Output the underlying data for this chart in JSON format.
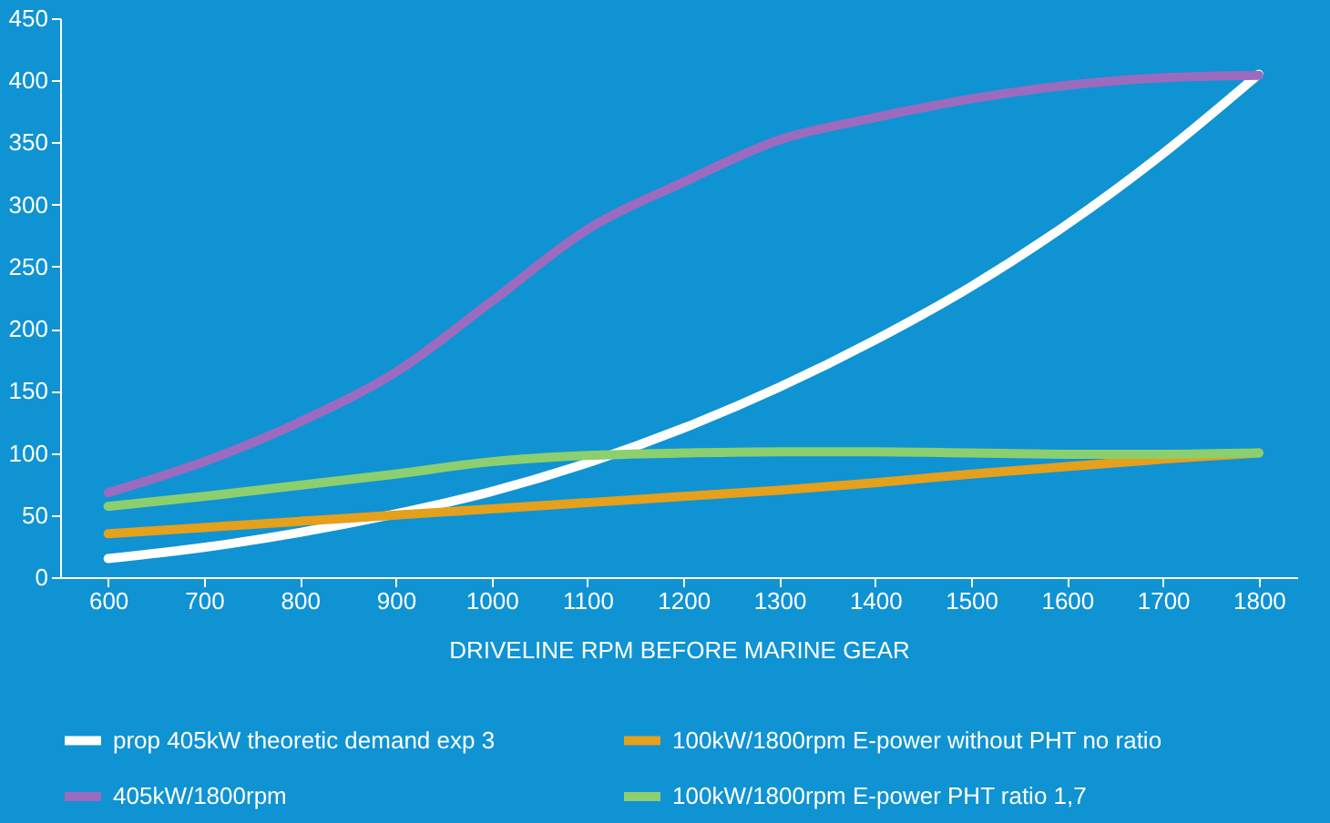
{
  "chart_data": {
    "type": "line",
    "xlabel": "DRIVELINE RPM BEFORE MARINE GEAR",
    "xlim": [
      550,
      1840
    ],
    "ylim": [
      0,
      450
    ],
    "xticks": [
      600,
      700,
      800,
      900,
      1000,
      1100,
      1200,
      1300,
      1400,
      1500,
      1600,
      1700,
      1800
    ],
    "yticks": [
      0,
      50,
      100,
      150,
      200,
      250,
      300,
      350,
      400,
      450
    ],
    "x": [
      600,
      700,
      800,
      900,
      1000,
      1100,
      1200,
      1300,
      1400,
      1500,
      1600,
      1700,
      1800
    ],
    "legend": "bottom",
    "series": [
      {
        "name": "prop 405kW theoretic demand exp 3",
        "color": "#ffffff",
        "values": [
          15,
          24,
          36,
          51,
          69,
          92,
          120,
          153,
          191,
          234,
          284,
          341,
          405
        ]
      },
      {
        "name": "100kW/1800rpm E-power without PHT no ratio",
        "color": "#e5a01c",
        "values": [
          35,
          40,
          45,
          50,
          55,
          60,
          65,
          70,
          76,
          83,
          89,
          95,
          100
        ]
      },
      {
        "name": "405kW/1800rpm",
        "color": "#9b6bbf",
        "values": [
          68,
          93,
          125,
          165,
          222,
          280,
          318,
          352,
          370,
          385,
          396,
          402,
          404
        ]
      },
      {
        "name": "100kW/1800rpm E-power PHT ratio 1,7",
        "color": "#8ccf6e",
        "values": [
          57,
          65,
          74,
          83,
          93,
          98,
          100,
          101,
          101,
          100,
          99,
          99,
          100
        ]
      }
    ]
  }
}
